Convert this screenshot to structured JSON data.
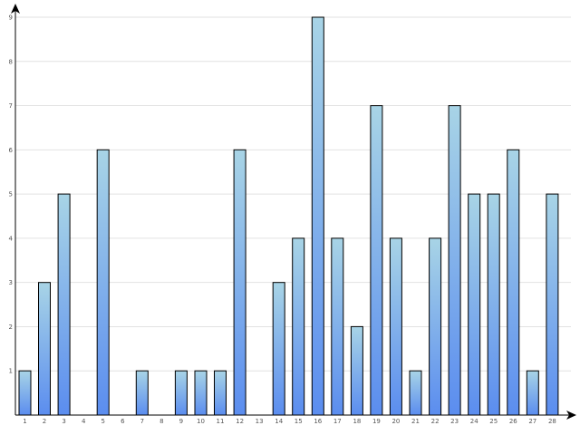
{
  "chart_data": {
    "type": "bar",
    "title": "",
    "xlabel": "",
    "ylabel": "",
    "categories": [
      "1",
      "2",
      "3",
      "4",
      "5",
      "6",
      "7",
      "8",
      "9",
      "10",
      "11",
      "12",
      "13",
      "14",
      "15",
      "16",
      "17",
      "18",
      "19",
      "20",
      "21",
      "22",
      "23",
      "24",
      "25",
      "26",
      "27",
      "28"
    ],
    "values": [
      1,
      3,
      5,
      0,
      6,
      0,
      1,
      0,
      1,
      1,
      1,
      6,
      0,
      3,
      4,
      9,
      4,
      2,
      7,
      4,
      1,
      4,
      7,
      5,
      5,
      6,
      1,
      5
    ],
    "ylim": [
      0,
      9
    ],
    "yticks": [
      1,
      2,
      3,
      4,
      5,
      6,
      7,
      8,
      9
    ],
    "grid": true,
    "colors": {
      "bar_top": "#a8d4e6",
      "bar_bottom": "#5b8def",
      "bar_outline": "#000000",
      "grid": "#e2e2e2",
      "axis": "#000000",
      "tick_text": "#555555"
    }
  }
}
